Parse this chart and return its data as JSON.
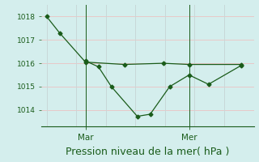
{
  "xlabel": "Pression niveau de la mer( hPa )",
  "xlabel_fontsize": 9,
  "bg_color": "#d4eeed",
  "grid_color_h": "#e8c8c8",
  "grid_color_v": "#c8d8d8",
  "line_color": "#1a5c1a",
  "line1_x": [
    0,
    0.5,
    1.5,
    3.0,
    4.5,
    5.5,
    7.5
  ],
  "line1_y": [
    1018.0,
    1017.3,
    1016.05,
    1015.95,
    1016.0,
    1015.95,
    1015.95
  ],
  "line2_x": [
    1.5,
    2.0,
    2.5,
    3.5,
    4.0,
    4.75,
    5.5,
    6.25,
    7.5
  ],
  "line2_y": [
    1016.1,
    1015.85,
    1015.0,
    1013.73,
    1013.82,
    1015.0,
    1015.5,
    1015.1,
    1015.9
  ],
  "yticks": [
    1014,
    1015,
    1016,
    1017,
    1018
  ],
  "ylim": [
    1013.3,
    1018.5
  ],
  "xtick_positions": [
    1.5,
    5.5
  ],
  "xtick_labels": [
    "Mar",
    "Mer"
  ],
  "vline_positions": [
    1.5,
    5.5
  ],
  "xlim": [
    -0.2,
    8.0
  ],
  "marker": "D",
  "markersize": 2.5,
  "linewidth": 0.9,
  "ytick_fontsize": 6.5,
  "xtick_fontsize": 7.5
}
